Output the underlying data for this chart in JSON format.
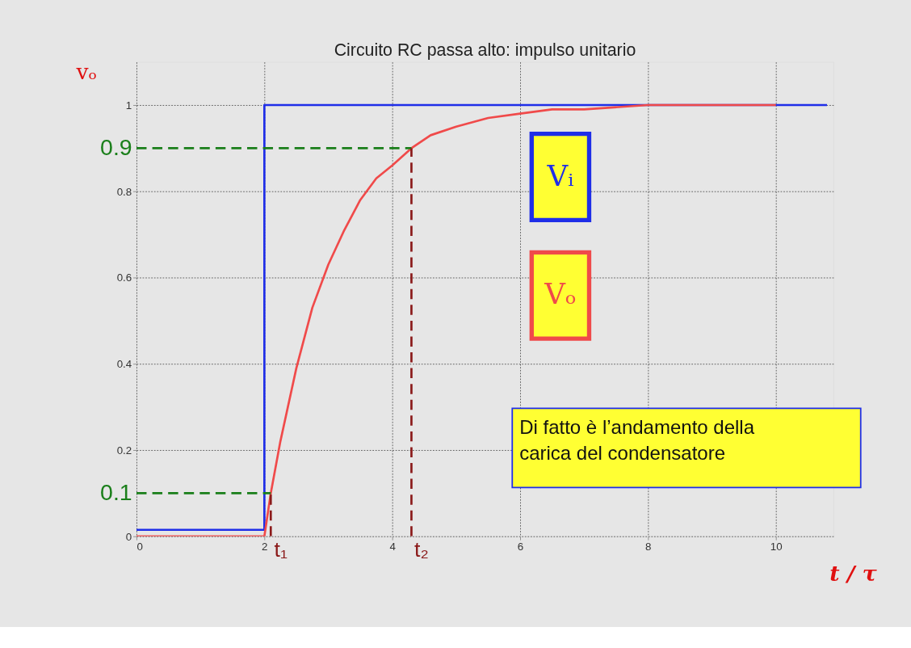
{
  "chart_data": {
    "type": "line",
    "title": "Circuito RC passa alto: impulso unitario",
    "xlabel": "t / τ",
    "ylabel": "vₒ",
    "xlim": [
      0,
      10.9
    ],
    "ylim": [
      0,
      1.1
    ],
    "xticks": [
      0,
      2,
      4,
      6,
      8,
      10
    ],
    "yticks": [
      0,
      0.2,
      0.4,
      0.6,
      0.8,
      1
    ],
    "grid": true,
    "legend": "right",
    "line_style": "solid",
    "marker": "none",
    "series": [
      {
        "name": "Vᵢ",
        "color": "#1f2ee8",
        "x": [
          0,
          2,
          2,
          10.8
        ],
        "values": [
          0.015,
          0.015,
          1,
          1
        ]
      },
      {
        "name": "Vₒ",
        "color": "#f04a4a",
        "x": [
          0,
          2,
          2.1,
          2.25,
          2.5,
          2.75,
          3,
          3.25,
          3.5,
          3.75,
          4,
          4.3,
          4.6,
          5,
          5.5,
          6,
          6.5,
          7,
          8,
          9,
          10
        ],
        "values": [
          0,
          0,
          0.1,
          0.22,
          0.39,
          0.53,
          0.63,
          0.71,
          0.78,
          0.83,
          0.86,
          0.9,
          0.93,
          0.95,
          0.97,
          0.98,
          0.99,
          0.99,
          1,
          1,
          1
        ]
      },
      {
        "color": "#1a7f1a",
        "line_style": "dashed",
        "x": [
          0,
          4.3
        ],
        "values": [
          0.9,
          0.9
        ]
      },
      {
        "color": "#1a7f1a",
        "line_style": "dashed",
        "x": [
          0,
          2.1
        ],
        "values": [
          0.1,
          0.1
        ]
      },
      {
        "color": "#8b1a1a",
        "line_style": "dashed",
        "x": [
          2.1,
          2.1
        ],
        "values": [
          0,
          0.1
        ]
      },
      {
        "color": "#8b1a1a",
        "line_style": "dashed",
        "x": [
          4.3,
          4.3
        ],
        "values": [
          0,
          0.9
        ]
      }
    ],
    "annotations": [
      {
        "text": "0.9",
        "x": 0,
        "y": 0.9
      },
      {
        "text": "0.1",
        "x": 0,
        "y": 0.1
      },
      {
        "text": "t₁",
        "x": 2.1,
        "y": 0
      },
      {
        "text": "t₂",
        "x": 4.3,
        "y": 0
      },
      "Di fatto è l’andamento della carica del condensatore"
    ]
  }
}
